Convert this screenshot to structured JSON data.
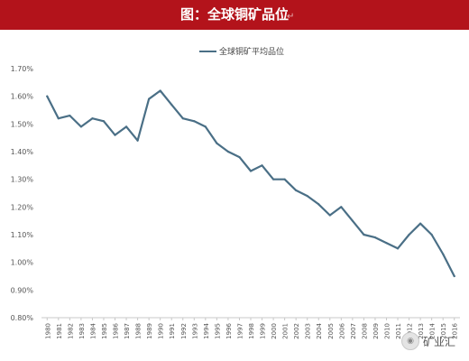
{
  "header": {
    "title": "图：全球铜矿品位",
    "background": "#b3131b",
    "text_color": "#ffffff"
  },
  "watermark": {
    "icon": "wechat-icon",
    "text": "矿业汇"
  },
  "chart_data": {
    "type": "line",
    "title": "图：全球铜矿品位",
    "xlabel": "",
    "ylabel": "",
    "legend": "top-center",
    "grid": false,
    "line_color": "#4a6f86",
    "ylim": [
      0.008,
      0.017
    ],
    "yticks": [
      "0.80%",
      "0.90%",
      "1.00%",
      "1.10%",
      "1.20%",
      "1.30%",
      "1.40%",
      "1.50%",
      "1.60%",
      "1.70%"
    ],
    "categories": [
      "1980",
      "1981",
      "1982",
      "1983",
      "1984",
      "1985",
      "1986",
      "1987",
      "1988",
      "1989",
      "1990",
      "1991",
      "1992",
      "1993",
      "1994",
      "1995",
      "1996",
      "1997",
      "1998",
      "1999",
      "2000",
      "2001",
      "2002",
      "2003",
      "2004",
      "2005",
      "2006",
      "2007",
      "2008",
      "2009",
      "2010",
      "2011",
      "2012",
      "2013",
      "2014",
      "2015",
      "2016"
    ],
    "series": [
      {
        "name": "全球铜矿平均品位",
        "values": [
          0.016,
          0.0152,
          0.0153,
          0.0149,
          0.0152,
          0.0151,
          0.0146,
          0.0149,
          0.0144,
          0.0159,
          0.0162,
          0.0157,
          0.0152,
          0.0151,
          0.0149,
          0.0143,
          0.014,
          0.0138,
          0.0133,
          0.0135,
          0.013,
          0.013,
          0.0126,
          0.0124,
          0.0121,
          0.0117,
          0.012,
          0.0115,
          0.011,
          0.0109,
          0.0107,
          0.0105,
          0.011,
          0.0114,
          0.011,
          0.0103,
          0.0095
        ]
      }
    ]
  }
}
